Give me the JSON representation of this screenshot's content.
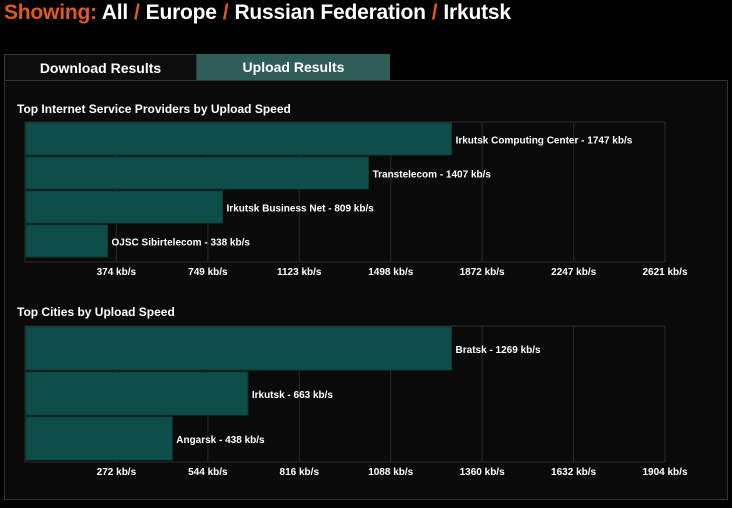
{
  "breadcrumb": {
    "label": "Showing:",
    "items": [
      "All",
      "Europe",
      "Russian Federation",
      "Irkutsk"
    ],
    "separator": "/"
  },
  "tabs": {
    "download": "Download Results",
    "upload": "Upload Results",
    "active": "upload"
  },
  "colors": {
    "accent": "#e2591c",
    "bar": "#0e4e4a",
    "tab_active": "#2f5d58"
  },
  "chart_data": [
    {
      "type": "bar",
      "orientation": "horizontal",
      "title": "Top Internet Service Providers by Upload Speed",
      "categories": [
        "Irkutsk Computing Center",
        "Transtelecom",
        "Irkutsk Business Net",
        "OJSC Sibirtelecom"
      ],
      "values": [
        1747,
        1407,
        809,
        338
      ],
      "value_labels": [
        "Irkutsk Computing Center - 1747 kb/s",
        "Transtelecom - 1407 kb/s",
        "Irkutsk Business Net - 809 kb/s",
        "OJSC Sibirtelecom - 338 kb/s"
      ],
      "xlim": [
        0,
        2621
      ],
      "xticks": [
        374,
        749,
        1123,
        1498,
        1872,
        2247,
        2621
      ],
      "xtick_labels": [
        "374 kb/s",
        "749 kb/s",
        "1123 kb/s",
        "1498 kb/s",
        "1872 kb/s",
        "2247 kb/s",
        "2621 kb/s"
      ],
      "grid": true
    },
    {
      "type": "bar",
      "orientation": "horizontal",
      "title": "Top Cities by Upload Speed",
      "categories": [
        "Bratsk",
        "Irkutsk",
        "Angarsk"
      ],
      "values": [
        1269,
        663,
        438
      ],
      "value_labels": [
        "Bratsk - 1269 kb/s",
        "Irkutsk - 663 kb/s",
        "Angarsk - 438 kb/s"
      ],
      "xlim": [
        0,
        1904
      ],
      "xticks": [
        272,
        544,
        816,
        1088,
        1360,
        1632,
        1904
      ],
      "xtick_labels": [
        "272 kb/s",
        "544 kb/s",
        "816 kb/s",
        "1088 kb/s",
        "1360 kb/s",
        "1632 kb/s",
        "1904 kb/s"
      ],
      "grid": true
    }
  ]
}
